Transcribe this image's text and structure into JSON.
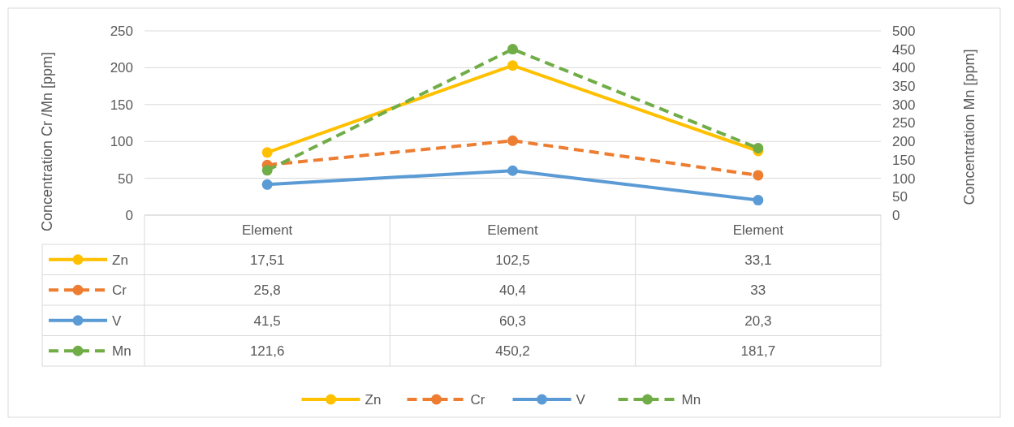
{
  "chart_data": {
    "type": "line",
    "categories": [
      "Element",
      "Element",
      "Element"
    ],
    "ylabel": "Concentration Cr /Mn [ppm]",
    "y2label": "Concentration  Mn [ppm]",
    "ylim": [
      0,
      250
    ],
    "yticks": [
      0,
      50,
      100,
      150,
      200,
      250
    ],
    "y2lim": [
      0,
      500
    ],
    "y2ticks": [
      0,
      50,
      100,
      150,
      200,
      250,
      300,
      350,
      400,
      450,
      500
    ],
    "annotations": [
      "17,51",
      "102,5",
      "33,1",
      "25,8",
      "40,4",
      "33"
    ],
    "grid": "y",
    "legend": "bottom",
    "marker": "circle",
    "series": [
      {
        "name": "Zn",
        "color": "#ffc000",
        "line_style": "solid",
        "values": [
          85,
          203,
          87
        ]
      },
      {
        "name": "Cr",
        "color": "#ed7d31",
        "line_style": "dashed",
        "values": [
          68,
          101,
          54
        ]
      },
      {
        "name": "V",
        "color": "#5b9bd5",
        "line_style": "solid",
        "values": [
          41.5,
          60.3,
          20.3
        ],
        "value_labels": [
          "41,5",
          "60,3",
          "20,3"
        ]
      },
      {
        "name": "Mn",
        "color": "#70ad47",
        "line_style": "dashed",
        "axis": "y2",
        "values": [
          121.6,
          450.2,
          181.7
        ],
        "value_labels": [
          "121,6",
          "450,2",
          "181,7"
        ]
      }
    ]
  }
}
